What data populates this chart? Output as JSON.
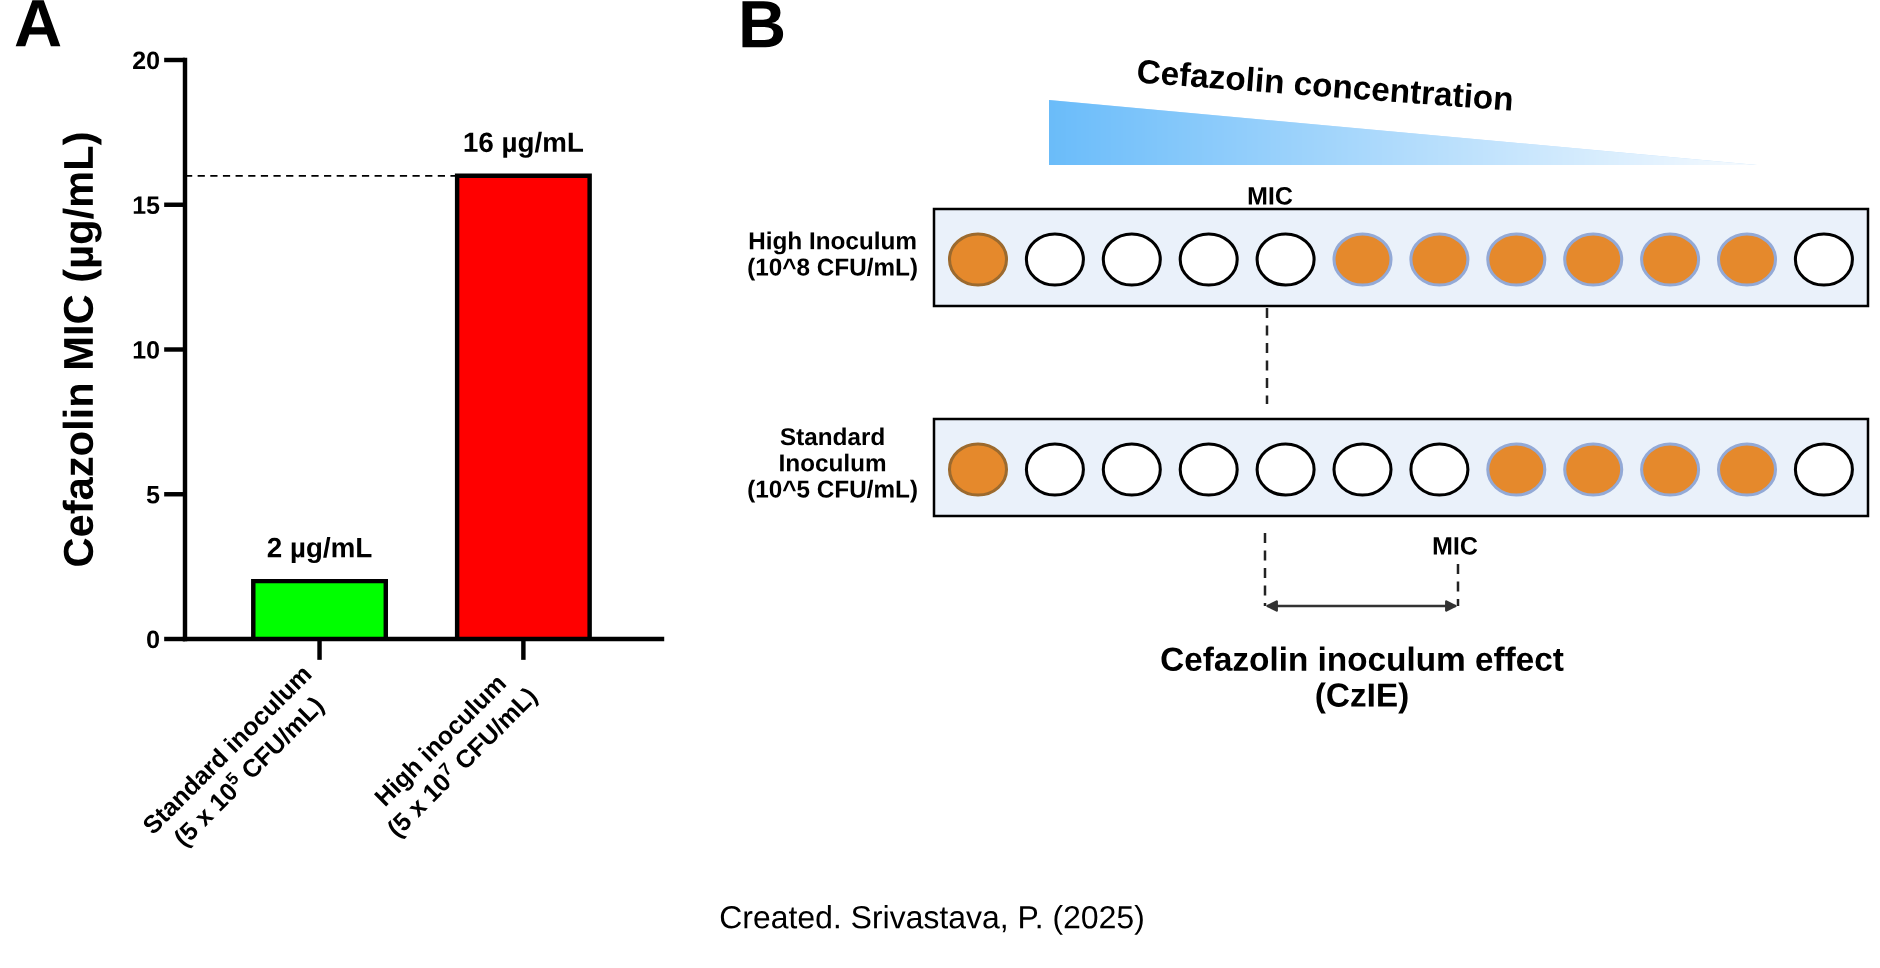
{
  "chart_data": [
    {
      "type": "bar",
      "title": "A",
      "ylabel": "Cefazolin MIC (µg/mL)",
      "categories": [
        "Standard inoculum\n(5 x 10$^{5}$ CFU/mL)",
        "High inoculum\n(5 x 10$^{7}$ CFU/mL)"
      ],
      "values": [
        2,
        16
      ],
      "colors": [
        "#00ff00",
        "#ff0000"
      ],
      "value_labels": [
        "2 µg/mL",
        "16 µg/mL"
      ],
      "ylim": [
        0,
        20
      ],
      "yticks": [
        0,
        5,
        10,
        15,
        20
      ],
      "ref_lines": [
        {
          "axis": "y",
          "value": 16,
          "line_style": "dashed",
          "color": "#000000"
        }
      ]
    },
    {
      "type": "other",
      "title": "B",
      "annotations": [
        "Cefazolin concentration",
        "MIC",
        "High Inoculum\n(10^8 CFU/mL)",
        "Standard\nInoculum\n(10^5 CFU/mL)",
        "MIC",
        "Cefazolin inoculum effect\n(CzIE)",
        "Created. Srivastava, P. (2025)"
      ]
    }
  ]
}
